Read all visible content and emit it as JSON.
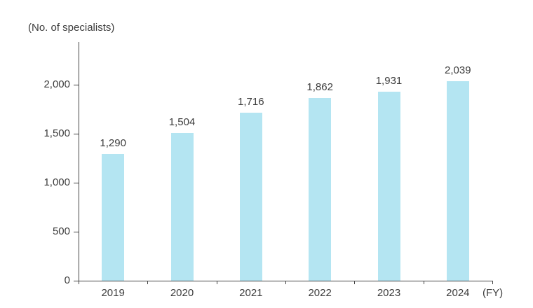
{
  "chart_data": {
    "type": "bar",
    "title": "",
    "unit_label": "(No. of specialists)",
    "x_suffix_label": "(FY)",
    "categories": [
      "2019",
      "2020",
      "2021",
      "2022",
      "2023",
      "2024"
    ],
    "values": [
      1290,
      1504,
      1716,
      1862,
      1931,
      2039
    ],
    "value_labels": [
      "1,290",
      "1,504",
      "1,716",
      "1,862",
      "1,931",
      "2,039"
    ],
    "xlabel": "FY",
    "ylabel": "No. of specialists",
    "ylim": [
      0,
      2435
    ],
    "y_ticks": [
      0,
      500,
      1000,
      1500,
      2000
    ],
    "y_tick_labels": [
      "0",
      "500",
      "1,000",
      "1,500",
      "2,000"
    ],
    "grid": false,
    "legend": "none",
    "bar_color": "#B4E5F2",
    "axis_color": "#444444",
    "text_color": "#3C3C3C"
  }
}
